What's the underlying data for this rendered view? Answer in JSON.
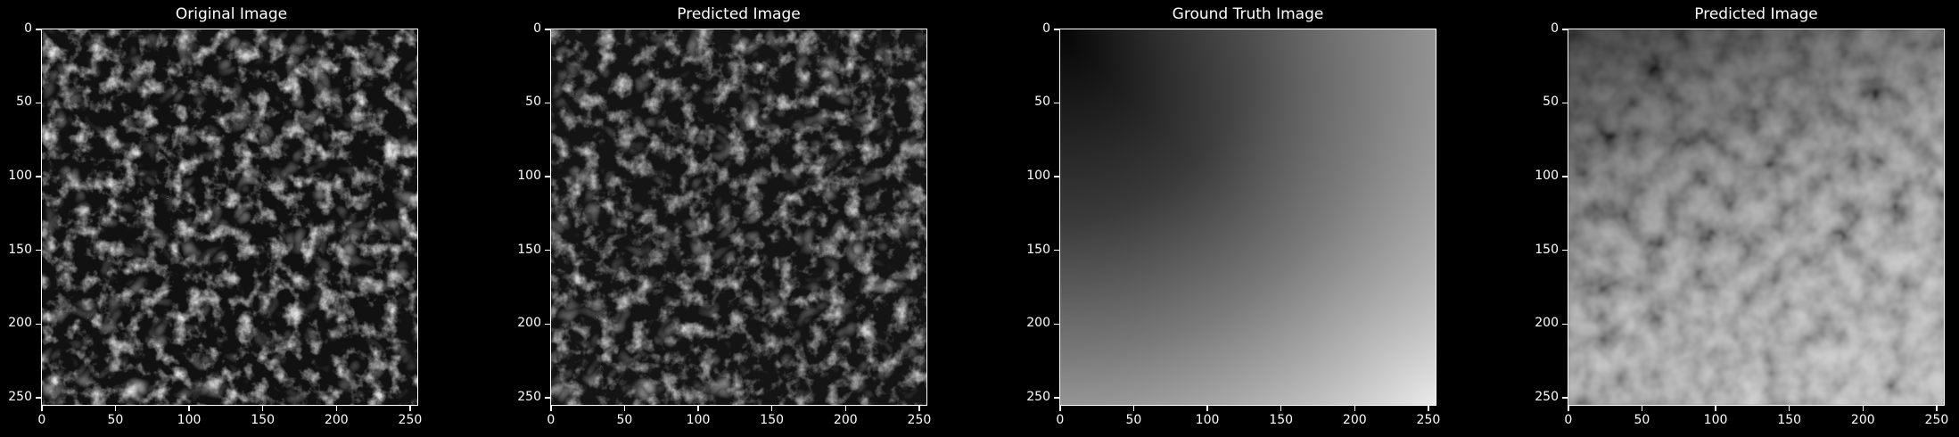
{
  "panels": [
    {
      "title": "Original Image",
      "image": "grayscale-texture-cellular"
    },
    {
      "title": "Predicted Image",
      "image": "grayscale-texture-cellular-predicted"
    },
    {
      "title": "Ground Truth Image",
      "image": "grayscale-smooth-gradient"
    },
    {
      "title": "Predicted Image",
      "image": "grayscale-blurry-gradient-texture"
    }
  ],
  "axis": {
    "ticks": [
      "0",
      "50",
      "100",
      "150",
      "200",
      "250"
    ]
  },
  "colors": {
    "background": "#000000",
    "text": "#ffffff"
  }
}
